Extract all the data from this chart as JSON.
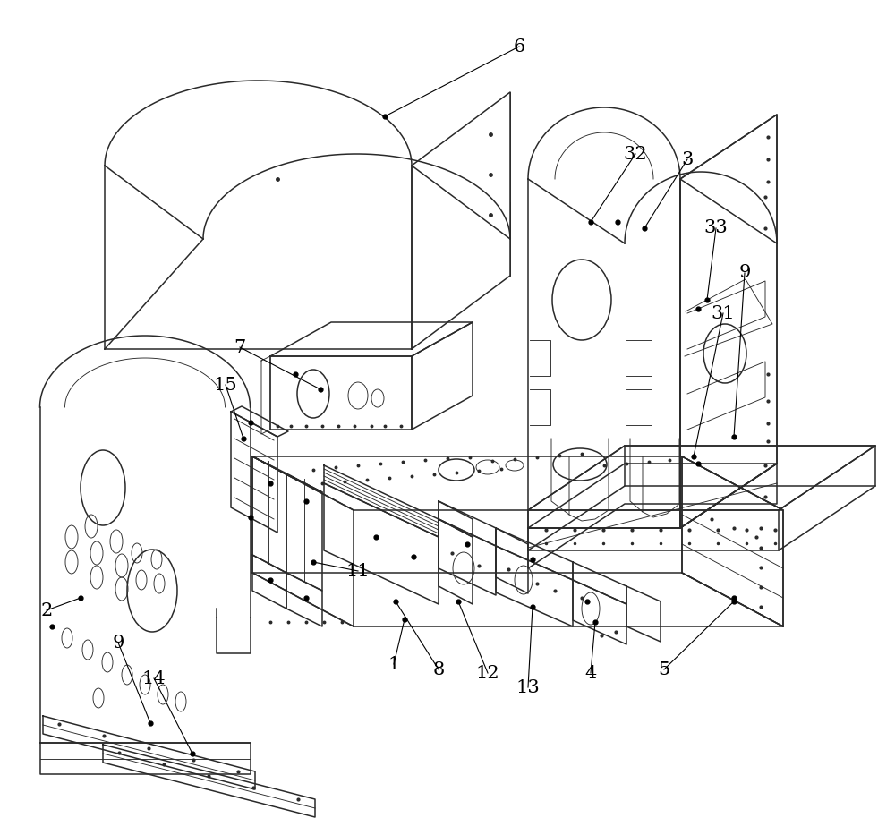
{
  "bg_color": "#ffffff",
  "line_color": "#2a2a2a",
  "lw": 1.1,
  "tlw": 0.65,
  "fig_width": 10.0,
  "fig_height": 9.14,
  "dpi": 100,
  "annotations": [
    [
      "6",
      580,
      52,
      430,
      130
    ],
    [
      "32",
      710,
      172,
      660,
      248
    ],
    [
      "3",
      768,
      178,
      720,
      255
    ],
    [
      "33",
      800,
      255,
      790,
      335
    ],
    [
      "9",
      832,
      305,
      820,
      488
    ],
    [
      "31",
      808,
      350,
      775,
      510
    ],
    [
      "7",
      268,
      388,
      358,
      435
    ],
    [
      "15",
      252,
      430,
      272,
      490
    ],
    [
      "2",
      52,
      682,
      90,
      668
    ],
    [
      "9",
      132,
      718,
      168,
      808
    ],
    [
      "14",
      172,
      758,
      215,
      842
    ],
    [
      "11",
      400,
      638,
      350,
      628
    ],
    [
      "1",
      440,
      742,
      452,
      692
    ],
    [
      "8",
      490,
      748,
      442,
      672
    ],
    [
      "12",
      545,
      752,
      512,
      672
    ],
    [
      "13",
      590,
      768,
      595,
      678
    ],
    [
      "4",
      660,
      752,
      665,
      695
    ],
    [
      "5",
      742,
      748,
      820,
      672
    ]
  ]
}
